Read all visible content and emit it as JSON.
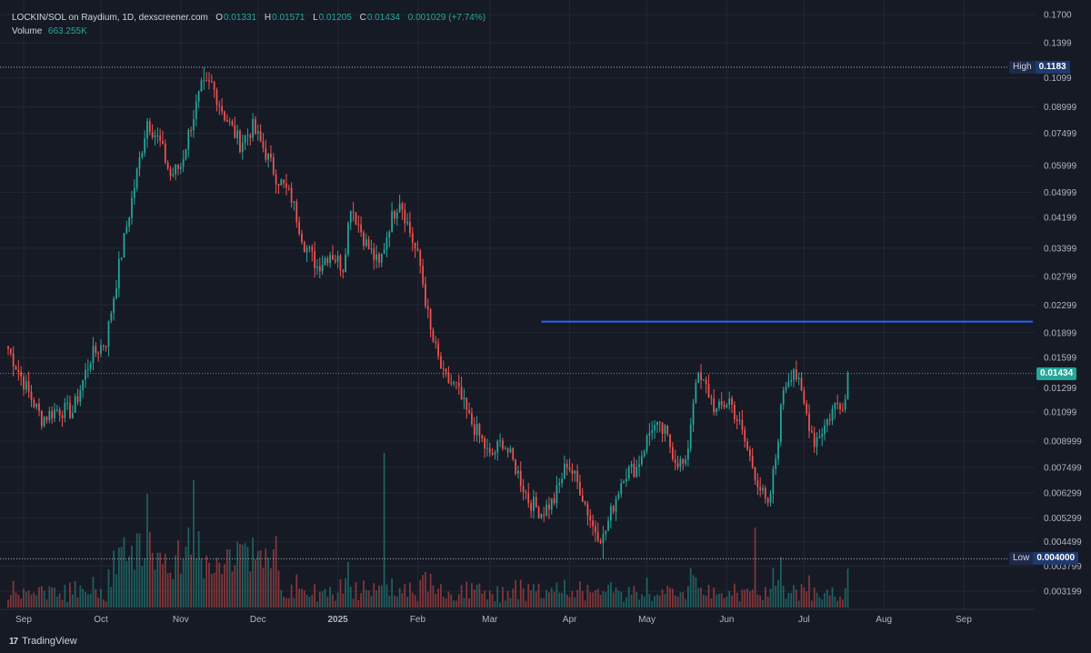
{
  "header": {
    "symbol_line": "LOCKIN/SOL on Raydium, 1D, dexscreener.com",
    "open_key": "O",
    "open": "0.01331",
    "high_key": "H",
    "high": "0.01571",
    "low_key": "L",
    "low": "0.01205",
    "close_key": "C",
    "close": "0.01434",
    "change": "0.001029 (+7.74%)",
    "volume_label": "Volume",
    "volume_value": "663.255K"
  },
  "markers": {
    "high_label": "High",
    "high_value": "0.1183",
    "low_label": "Low",
    "low_value": "0.004000",
    "last_value": "0.01434"
  },
  "footer": {
    "brand": "TradingView",
    "brand_mark": "17"
  },
  "colors": {
    "up": "#26a69a",
    "down": "#ef5350",
    "trendline": "#2962ff",
    "background": "#161a25",
    "grid": "#232733"
  },
  "chart_data": {
    "type": "candlestick",
    "scale": "log",
    "y_ticks": [
      "0.1700",
      "0.1399",
      "0.1099",
      "0.08999",
      "0.07499",
      "0.05999",
      "0.04999",
      "0.04199",
      "0.03399",
      "0.02799",
      "0.02299",
      "0.01899",
      "0.01599",
      "0.01299",
      "0.01099",
      "0.008999",
      "0.007499",
      "0.006299",
      "0.005299",
      "0.004499",
      "0.003799",
      "0.003199"
    ],
    "x_ticks": [
      "Sep",
      "Oct",
      "Nov",
      "Dec",
      "2025",
      "Feb",
      "Mar",
      "Apr",
      "May",
      "Jun",
      "Jul",
      "Aug",
      "Sep"
    ],
    "x_tick_dates": [
      "2024-09-01",
      "2024-10-01",
      "2024-11-01",
      "2024-12-01",
      "2025-01-01",
      "2025-02-01",
      "2025-03-01",
      "2025-04-01",
      "2025-05-01",
      "2025-06-01",
      "2025-07-01",
      "2025-08-01",
      "2025-09-01"
    ],
    "start_date": "2024-08-26",
    "end_date": "2025-07-18",
    "high_value": 0.1183,
    "low_value": 0.004,
    "last_close": 0.01434,
    "resistance_line": {
      "value": 0.0205,
      "from": "2025-03-21",
      "to": "2025-09-30"
    },
    "close_anchors": [
      [
        "2024-08-26",
        0.017
      ],
      [
        "2024-09-03",
        0.0125
      ],
      [
        "2024-09-08",
        0.0105
      ],
      [
        "2024-09-14",
        0.0112
      ],
      [
        "2024-09-20",
        0.011
      ],
      [
        "2024-09-27",
        0.016
      ],
      [
        "2024-10-03",
        0.018
      ],
      [
        "2024-10-08",
        0.03
      ],
      [
        "2024-10-14",
        0.052
      ],
      [
        "2024-10-19",
        0.082
      ],
      [
        "2024-10-24",
        0.07
      ],
      [
        "2024-10-28",
        0.056
      ],
      [
        "2024-11-01",
        0.06
      ],
      [
        "2024-11-05",
        0.08
      ],
      [
        "2024-11-09",
        0.102
      ],
      [
        "2024-11-13",
        0.105
      ],
      [
        "2024-11-18",
        0.085
      ],
      [
        "2024-11-24",
        0.07
      ],
      [
        "2024-11-29",
        0.078
      ],
      [
        "2024-12-03",
        0.068
      ],
      [
        "2024-12-08",
        0.056
      ],
      [
        "2024-12-14",
        0.048
      ],
      [
        "2024-12-19",
        0.035
      ],
      [
        "2024-12-24",
        0.03
      ],
      [
        "2024-12-29",
        0.033
      ],
      [
        "2025-01-03",
        0.03
      ],
      [
        "2025-01-06",
        0.046
      ],
      [
        "2025-01-12",
        0.035
      ],
      [
        "2025-01-17",
        0.03
      ],
      [
        "2025-01-21",
        0.04
      ],
      [
        "2025-01-25",
        0.048
      ],
      [
        "2025-01-29",
        0.038
      ],
      [
        "2025-02-02",
        0.03
      ],
      [
        "2025-02-06",
        0.019
      ],
      [
        "2025-02-11",
        0.014
      ],
      [
        "2025-02-16",
        0.013
      ],
      [
        "2025-02-21",
        0.0105
      ],
      [
        "2025-02-26",
        0.009
      ],
      [
        "2025-03-01",
        0.008
      ],
      [
        "2025-03-06",
        0.009
      ],
      [
        "2025-03-11",
        0.0075
      ],
      [
        "2025-03-16",
        0.006
      ],
      [
        "2025-03-21",
        0.0055
      ],
      [
        "2025-03-26",
        0.006
      ],
      [
        "2025-03-31",
        0.0078
      ],
      [
        "2025-04-05",
        0.0065
      ],
      [
        "2025-04-10",
        0.005
      ],
      [
        "2025-04-14",
        0.0046
      ],
      [
        "2025-04-18",
        0.0058
      ],
      [
        "2025-04-22",
        0.0072
      ],
      [
        "2025-04-27",
        0.0075
      ],
      [
        "2025-05-03",
        0.01
      ],
      [
        "2025-05-08",
        0.0095
      ],
      [
        "2025-05-12",
        0.008
      ],
      [
        "2025-05-16",
        0.0075
      ],
      [
        "2025-05-20",
        0.014
      ],
      [
        "2025-05-24",
        0.013
      ],
      [
        "2025-05-28",
        0.011
      ],
      [
        "2025-06-02",
        0.012
      ],
      [
        "2025-06-06",
        0.01
      ],
      [
        "2025-06-10",
        0.008
      ],
      [
        "2025-06-14",
        0.0065
      ],
      [
        "2025-06-17",
        0.0056
      ],
      [
        "2025-06-20",
        0.008
      ],
      [
        "2025-06-23",
        0.013
      ],
      [
        "2025-06-27",
        0.015
      ],
      [
        "2025-07-01",
        0.0115
      ],
      [
        "2025-07-05",
        0.009
      ],
      [
        "2025-07-09",
        0.01
      ],
      [
        "2025-07-13",
        0.0115
      ],
      [
        "2025-07-17",
        0.012
      ],
      [
        "2025-07-18",
        0.01434
      ]
    ]
  }
}
